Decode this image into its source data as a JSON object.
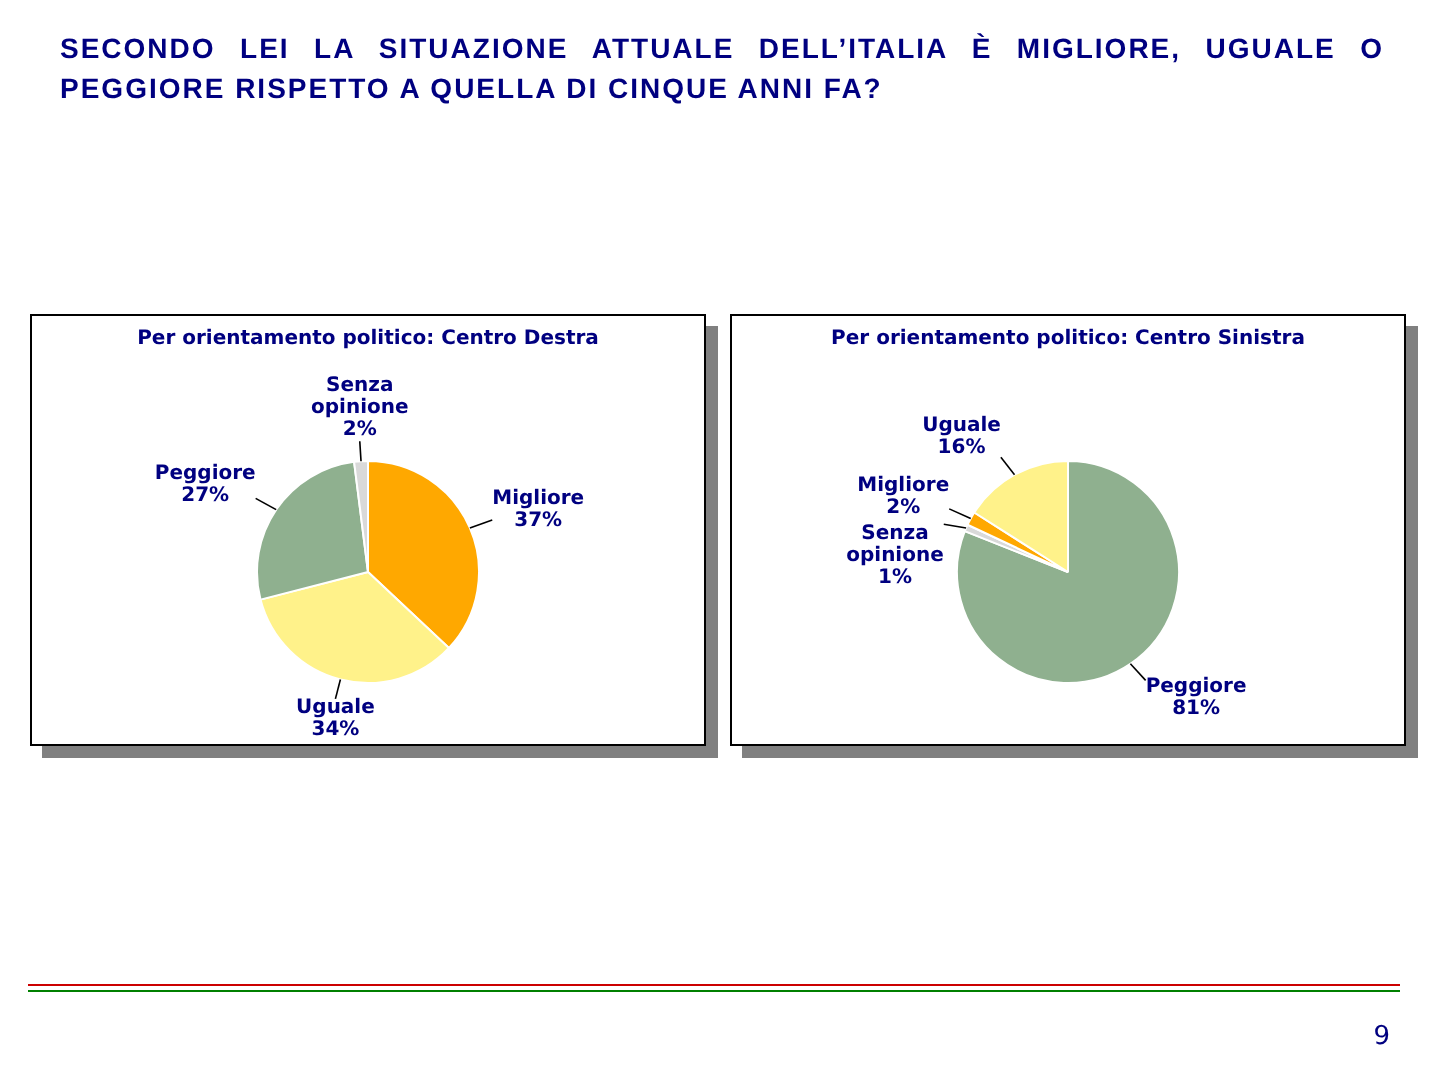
{
  "chart_data": [
    {
      "type": "pie",
      "title": "Per orientamento politico: Centro Destra",
      "categories": [
        "Migliore",
        "Uguale",
        "Peggiore",
        "Senza opinione"
      ],
      "values": [
        37,
        34,
        27,
        2
      ],
      "value_labels": [
        "37%",
        "34%",
        "27%",
        "2%"
      ],
      "colors": [
        "#ffa800",
        "#fff28a",
        "#8fb08f",
        "#d9d9d9"
      ],
      "annotations": [
        "SECONDO LEI LA SITUAZIONE ATTUALE DELL’ITALIA È MIGLIORE, UGUALE O PEGGIORE RISPETTO A QUELLA DI CINQUE ANNI FA?",
        "9"
      ]
    },
    {
      "type": "pie",
      "title": "Per orientamento politico: Centro Sinistra",
      "categories": [
        "Peggiore",
        "Senza opinione",
        "Migliore",
        "Uguale"
      ],
      "values": [
        81,
        1,
        2,
        16
      ],
      "value_labels": [
        "81%",
        "1%",
        "2%",
        "16%"
      ],
      "colors": [
        "#8fb08f",
        "#d9d9d9",
        "#ffa800",
        "#fff28a"
      ]
    }
  ]
}
